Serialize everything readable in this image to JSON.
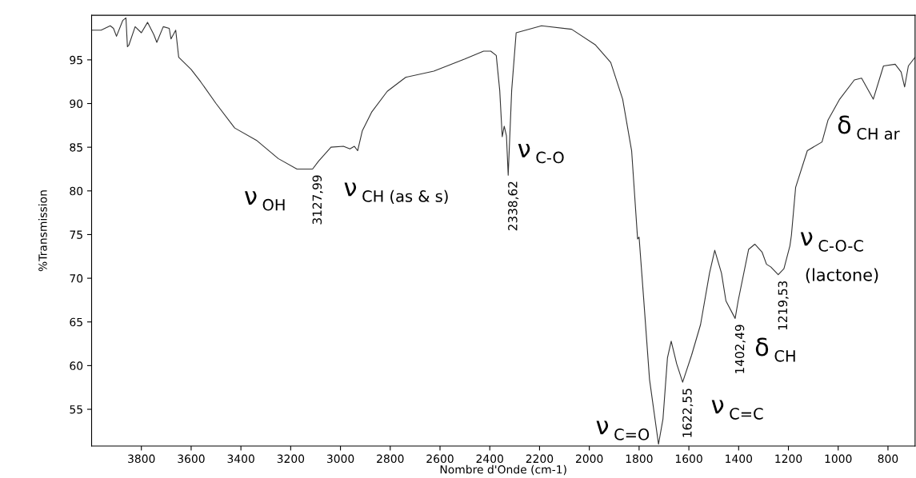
{
  "chart_data": {
    "type": "line",
    "xlabel": "Nombre d'Onde (cm-1)",
    "ylabel": "%Transmission",
    "xlim": [
      4000,
      691
    ],
    "ylim": [
      50.8,
      100.1
    ],
    "xticks": [
      3800,
      3600,
      3400,
      3200,
      3000,
      2800,
      2600,
      2400,
      2200,
      2000,
      1800,
      1600,
      1400,
      1200,
      1000,
      800
    ],
    "yticks": [
      55,
      60,
      65,
      70,
      75,
      80,
      85,
      90,
      95
    ],
    "grid": false,
    "legend": false,
    "marker": "none",
    "line_style": "solid",
    "series": [
      {
        "color": "#333333",
        "x": [
          4000,
          3962,
          3925,
          3912,
          3900,
          3875,
          3862,
          3856,
          3850,
          3825,
          3800,
          3775,
          3750,
          3738,
          3712,
          3688,
          3681,
          3662,
          3650,
          3600,
          3562,
          3500,
          3425,
          3338,
          3250,
          3175,
          3112,
          3088,
          3038,
          2988,
          2962,
          2944,
          2931,
          2912,
          2875,
          2812,
          2738,
          2625,
          2500,
          2425,
          2396,
          2374,
          2360,
          2350,
          2342,
          2333,
          2326,
          2312,
          2294,
          2192,
          2071,
          1975,
          1914,
          1866,
          1830,
          1806,
          1800,
          1782,
          1758,
          1722,
          1704,
          1686,
          1671,
          1649,
          1625,
          1589,
          1553,
          1517,
          1496,
          1469,
          1451,
          1414,
          1402,
          1360,
          1335,
          1306,
          1288,
          1271,
          1241,
          1218,
          1194,
          1188,
          1171,
          1124,
          1065,
          1041,
          994,
          935,
          906,
          859,
          818,
          771,
          747,
          733,
          718,
          691
        ],
        "values": [
          98.4,
          98.4,
          98.9,
          98.6,
          97.7,
          99.5,
          99.8,
          96.5,
          96.7,
          98.8,
          98.1,
          99.3,
          97.9,
          97.0,
          98.8,
          98.6,
          97.4,
          98.4,
          95.3,
          93.9,
          92.5,
          90.0,
          87.2,
          85.8,
          83.7,
          82.5,
          82.5,
          83.4,
          85.0,
          85.1,
          84.8,
          85.1,
          84.6,
          86.9,
          89.0,
          91.4,
          93.0,
          93.7,
          95.1,
          96.0,
          96.0,
          95.5,
          91.5,
          86.2,
          87.4,
          86.3,
          81.8,
          91.5,
          98.1,
          98.9,
          98.5,
          96.7,
          94.7,
          90.5,
          84.6,
          74.5,
          74.7,
          67.8,
          58.4,
          51.0,
          53.9,
          60.9,
          62.8,
          60.2,
          58.1,
          61.2,
          64.7,
          70.6,
          73.2,
          70.6,
          67.4,
          65.4,
          67.4,
          73.3,
          73.9,
          73.0,
          71.6,
          71.3,
          70.4,
          71.1,
          73.7,
          74.9,
          80.4,
          84.6,
          85.6,
          88.1,
          90.5,
          92.7,
          92.9,
          90.5,
          94.3,
          94.5,
          93.6,
          91.9,
          94.3,
          95.3
        ]
      }
    ],
    "annotations": [
      {
        "text": "3127,99",
        "x": 3112,
        "y": 82.5
      },
      {
        "text": "2338,62",
        "x": 2326,
        "y": 81.8
      },
      {
        "text": "1622,55",
        "x": 1625,
        "y": 58.1
      },
      {
        "text": "1402,49",
        "x": 1414,
        "y": 65.4
      },
      {
        "text": "1219,53",
        "x": 1241,
        "y": 70.4
      },
      "ν$_{OH}$",
      "ν$_{CH (as & s)}$",
      "ν$_{C-O}$",
      "ν$_{C=O}$",
      "ν$_{C=C}$",
      "δ$_{CH}$",
      "ν$_{C-O-C}$",
      "(lactone)",
      "δ$_{CH ar}$"
    ]
  }
}
